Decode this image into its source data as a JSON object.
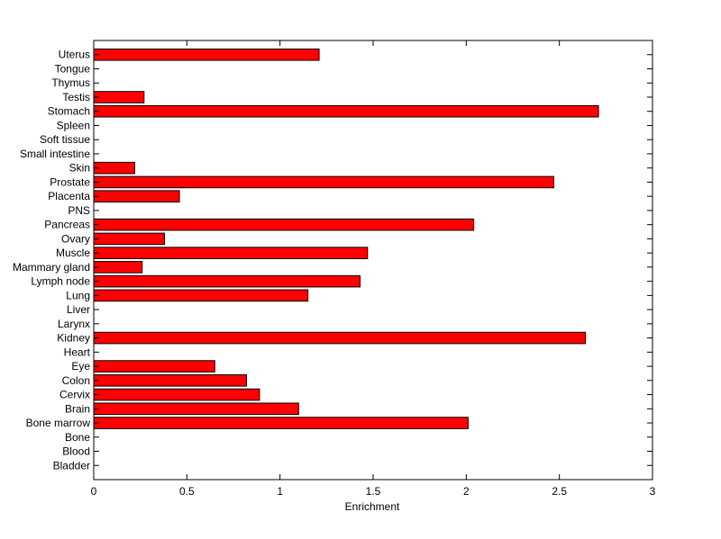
{
  "chart_data": {
    "type": "bar",
    "orientation": "horizontal",
    "title": "",
    "xlabel": "Enrichment",
    "ylabel": "",
    "xlim": [
      0,
      3
    ],
    "xticks": [
      "0",
      "0.5",
      "1",
      "1.5",
      "2",
      "2.5",
      "3"
    ],
    "grid": false,
    "legend": "none",
    "bar_color": "#ff0000",
    "categories": [
      "Bladder",
      "Blood",
      "Bone",
      "Bone marrow",
      "Brain",
      "Cervix",
      "Colon",
      "Eye",
      "Heart",
      "Kidney",
      "Larynx",
      "Liver",
      "Lung",
      "Lymph node",
      "Mammary gland",
      "Muscle",
      "Ovary",
      "Pancreas",
      "PNS",
      "Placenta",
      "Prostate",
      "Skin",
      "Small intestine",
      "Soft tissue",
      "Spleen",
      "Stomach",
      "Testis",
      "Thymus",
      "Tongue",
      "Uterus"
    ],
    "values": [
      0,
      0,
      0,
      2.01,
      1.1,
      0.89,
      0.82,
      0.65,
      0,
      2.64,
      0,
      0,
      1.15,
      1.43,
      0.26,
      1.47,
      0.38,
      2.04,
      0,
      0.46,
      2.47,
      0.22,
      0,
      0,
      0,
      2.71,
      0.27,
      0,
      0,
      1.21
    ]
  }
}
